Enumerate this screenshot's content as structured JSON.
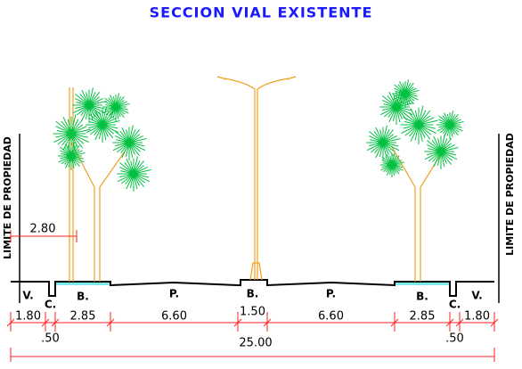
{
  "title": "SECCION VIAL EXISTENTE",
  "property_limit": {
    "left": "LIMITE DE PROPIEDAD",
    "right": "LIMITE DE PROPIEDAD"
  },
  "offset": "2.80",
  "zones": [
    {
      "label": "V.",
      "width": "1.80"
    },
    {
      "label": "C.",
      "width": ".50"
    },
    {
      "label": "B.",
      "width": "2.85"
    },
    {
      "label": "P.",
      "width": "6.60"
    },
    {
      "label": "B.",
      "width": "1.50"
    },
    {
      "label": "P.",
      "width": "6.60"
    },
    {
      "label": "B.",
      "width": "2.85"
    },
    {
      "label": "C.",
      "width": ".50"
    },
    {
      "label": "V.",
      "width": "1.80"
    }
  ],
  "total": "25.00"
}
